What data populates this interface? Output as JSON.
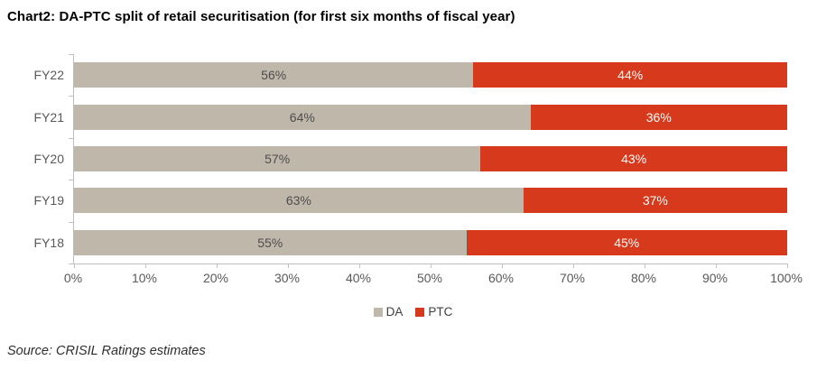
{
  "title": "Chart2: DA-PTC split of retail securitisation (for first six months of fiscal year)",
  "source": "Source: CRISIL Ratings estimates",
  "colors": {
    "da": "#BEB7AA",
    "ptc": "#D6391B",
    "axis_line": "#BFBFBF",
    "axis_text": "#595959",
    "label_on_da": "#4D4D4D",
    "label_on_ptc": "#FFFFFF"
  },
  "chart_data": {
    "type": "bar",
    "orientation": "horizontal",
    "stacked": true,
    "title": "Chart2: DA-PTC split of retail securitisation (for first six months of fiscal year)",
    "categories": [
      "FY22",
      "FY21",
      "FY20",
      "FY19",
      "FY18"
    ],
    "series": [
      {
        "name": "DA",
        "color": "#BEB7AA",
        "values": [
          56,
          64,
          57,
          63,
          55
        ]
      },
      {
        "name": "PTC",
        "color": "#D6391B",
        "values": [
          44,
          36,
          43,
          37,
          45
        ]
      }
    ],
    "data_label_suffix": "%",
    "xlim": [
      0,
      100
    ],
    "x_ticks": [
      "0%",
      "10%",
      "20%",
      "30%",
      "40%",
      "50%",
      "60%",
      "70%",
      "80%",
      "90%",
      "100%"
    ],
    "grid": false,
    "legend_position": "bottom-center"
  }
}
